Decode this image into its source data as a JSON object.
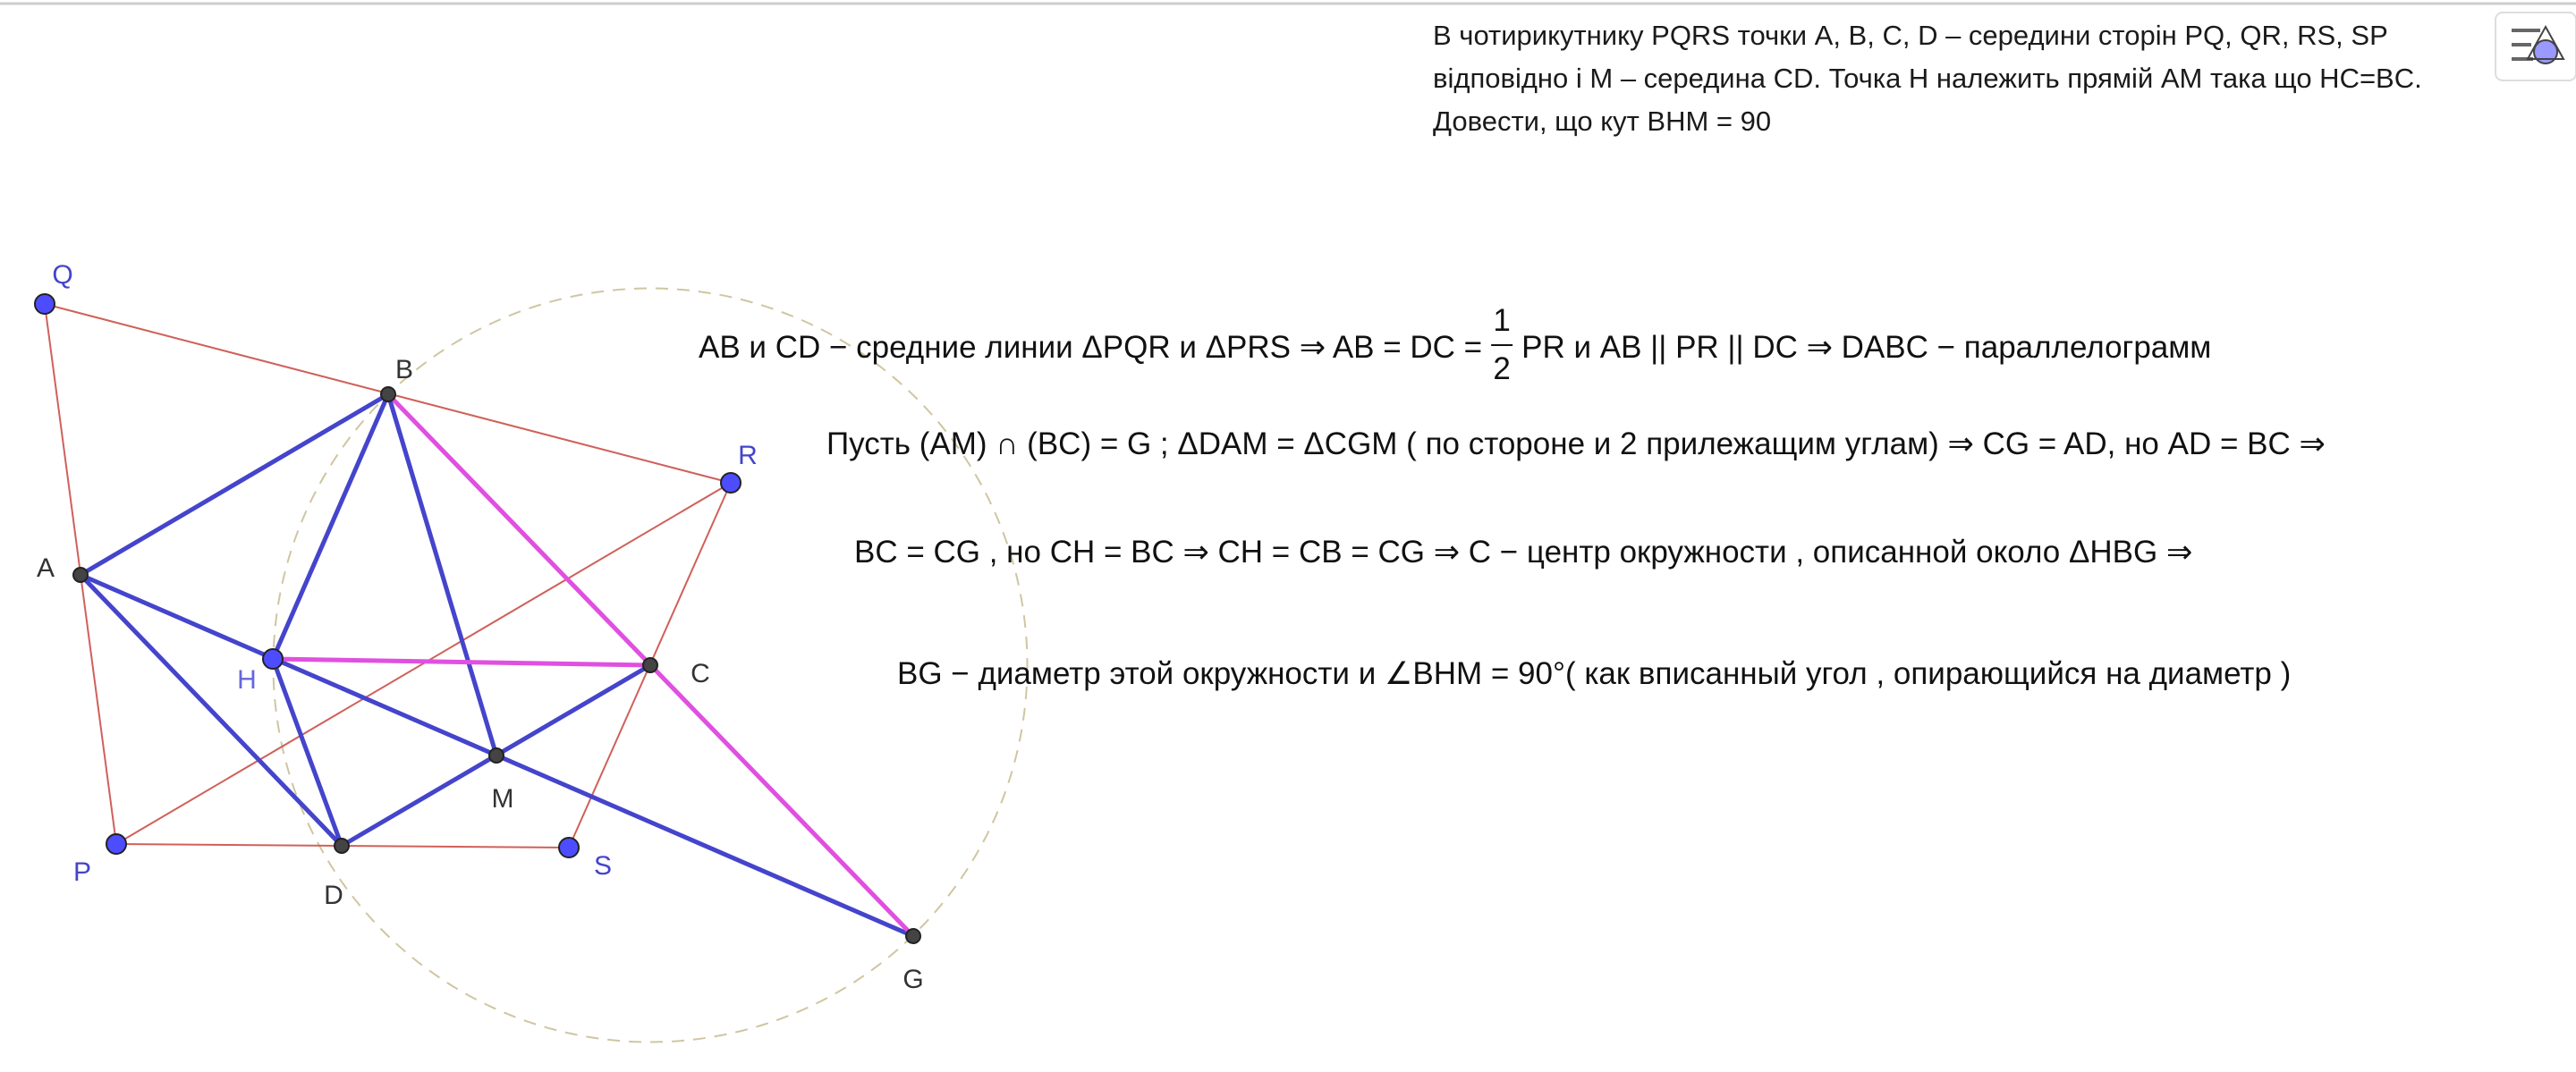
{
  "problem": {
    "lines": [
      "В чотирикутнику PQRS точки A, B, C, D – середини сторін PQ, QR, RS, SP",
      "відповідно і M – середина CD. Точка H належить прямій AM така що HC=BC.",
      "Довести, що кут BHM = 90"
    ]
  },
  "points": {
    "Q": "Q",
    "B": "B",
    "R": "R",
    "A": "A",
    "H": "H",
    "C": "C",
    "M": "M",
    "P": "P",
    "D": "D",
    "S": "S",
    "G": "G"
  },
  "solution": {
    "line1": {
      "before": "AB и CD −  средние линии  ΔPQR  и  ΔPRS  ⇒ AB = DC = ",
      "numerator": "1",
      "denominator": "2",
      "after": "PR  и  AB || PR || DC  ⇒ DABC −  параллелограмм"
    },
    "line2": "Пусть (AM) ∩ (BC) = G ;  ΔDAM  =  ΔCGM ( по  стороне и 2 прилежащим углам)  ⇒ CG = AD,  но AD = BC ⇒",
    "line3": "BC = CG ,  но CH = BC  ⇒ CH = CB = CG  ⇒ C −  центр окружности , описанной около  ΔHBG  ⇒",
    "line4": "BG −  диаметр этой окружности и ∠BHM = 90°( как вписанный угол , опирающийся на диаметр )"
  }
}
